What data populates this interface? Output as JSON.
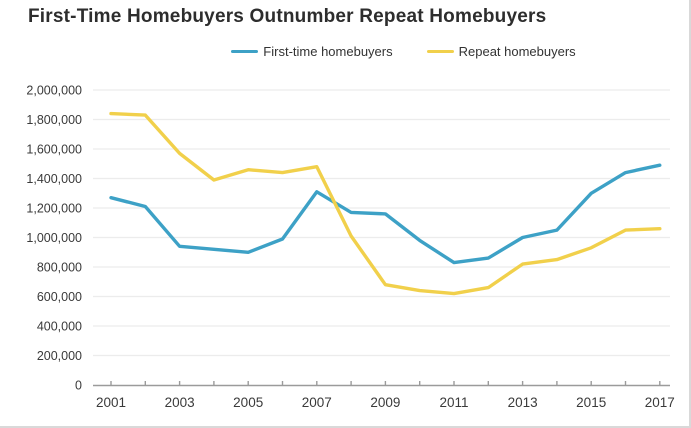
{
  "title": "First-Time Homebuyers Outnumber Repeat Homebuyers",
  "colors": {
    "first_time": "#3DA1C6",
    "repeat": "#F1D04B",
    "grid": "#ececec",
    "axis": "#9b9b9b",
    "tick_text": "#3a3a3a",
    "title_text": "#2d2d2d"
  },
  "legend": {
    "items": [
      {
        "label": "First-time homebuyers",
        "color_key": "first_time"
      },
      {
        "label": "Repeat homebuyers",
        "color_key": "repeat"
      }
    ]
  },
  "chart_data": {
    "type": "line",
    "title": "First-Time Homebuyers Outnumber Repeat Homebuyers",
    "x": [
      2001,
      2002,
      2003,
      2004,
      2005,
      2006,
      2007,
      2008,
      2009,
      2010,
      2011,
      2012,
      2013,
      2014,
      2015,
      2016,
      2017
    ],
    "series": [
      {
        "name": "First-time homebuyers",
        "color_key": "first_time",
        "values": [
          1270000,
          1210000,
          940000,
          920000,
          900000,
          990000,
          1310000,
          1170000,
          1160000,
          980000,
          830000,
          860000,
          1000000,
          1050000,
          1300000,
          1440000,
          1490000
        ]
      },
      {
        "name": "Repeat homebuyers",
        "color_key": "repeat",
        "values": [
          1840000,
          1830000,
          1570000,
          1390000,
          1460000,
          1440000,
          1480000,
          1010000,
          680000,
          640000,
          620000,
          660000,
          820000,
          850000,
          930000,
          1050000,
          1060000
        ]
      }
    ],
    "xlabel": "",
    "ylabel": "",
    "ylim": [
      0,
      2000000
    ],
    "ytick_step": 200000,
    "xtick_label_years": [
      2001,
      2003,
      2005,
      2007,
      2009,
      2011,
      2013,
      2015,
      2017
    ],
    "grid": true,
    "legend_position": "top-center"
  }
}
